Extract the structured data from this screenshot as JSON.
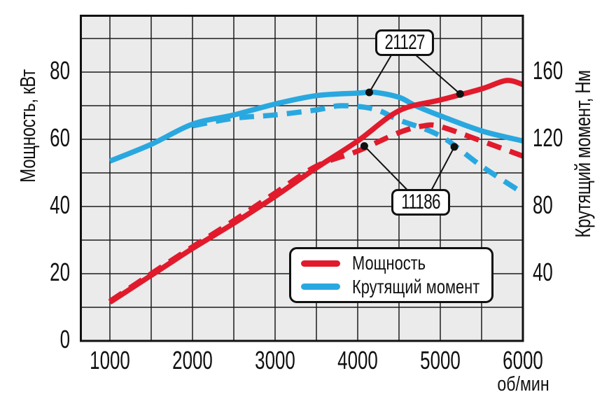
{
  "chart_data": {
    "type": "line",
    "title": "",
    "x": {
      "label": "об/мин",
      "min": 1000,
      "max": 6000,
      "ticks": [
        1000,
        2000,
        3000,
        4000,
        5000,
        6000
      ],
      "gridline_step": 500
    },
    "y_left": {
      "label": "Мощность, кВт",
      "min": 0,
      "max": 96,
      "ticks": [
        0,
        20,
        40,
        60,
        80
      ],
      "gridline_step": 10
    },
    "y_right": {
      "label": "Крутящий момент, Нм",
      "min": 0,
      "max": 193,
      "ticks": [
        40,
        80,
        120,
        160
      ],
      "gridline_step": 20
    },
    "grid": true,
    "plot_background": "#ebebeb",
    "grid_color": "#1c1c1c",
    "border_color": "#111111",
    "colors": {
      "power": "#e11a2c",
      "torque": "#29a8e0"
    },
    "legend_position": "bottom-center-inside",
    "legend": [
      {
        "label": "Мощность",
        "color": "#e11a2c"
      },
      {
        "label": "Крутящий момент",
        "color": "#29a8e0"
      }
    ],
    "series": [
      {
        "id": "torque-11186",
        "engine": "11186",
        "quantity": "Крутящий момент",
        "axis": "right",
        "style": "dashed",
        "color": "#29a8e0",
        "points": [
          [
            2000,
            128
          ],
          [
            2500,
            132.5
          ],
          [
            3000,
            134.5
          ],
          [
            3500,
            137.5
          ],
          [
            3800,
            140
          ],
          [
            4200,
            138
          ],
          [
            4500,
            131.5
          ],
          [
            5000,
            122
          ],
          [
            5500,
            104
          ],
          [
            6000,
            88
          ]
        ]
      },
      {
        "id": "torque-21127",
        "engine": "21127",
        "quantity": "Крутящий момент",
        "axis": "right",
        "style": "solid",
        "color": "#29a8e0",
        "points": [
          [
            1000,
            107
          ],
          [
            1500,
            117
          ],
          [
            2000,
            129
          ],
          [
            2500,
            134.5
          ],
          [
            3000,
            141
          ],
          [
            3500,
            146
          ],
          [
            4000,
            147.5
          ],
          [
            4200,
            148
          ],
          [
            4500,
            145
          ],
          [
            4700,
            140
          ],
          [
            5000,
            134
          ],
          [
            5500,
            125
          ],
          [
            6000,
            119
          ]
        ]
      },
      {
        "id": "power-21127",
        "engine": "21127",
        "quantity": "Мощность",
        "axis": "left",
        "style": "solid",
        "color": "#e11a2c",
        "points": [
          [
            1000,
            11.5
          ],
          [
            1500,
            19.5
          ],
          [
            2000,
            27.5
          ],
          [
            2500,
            35
          ],
          [
            3000,
            43
          ],
          [
            3500,
            51.5
          ],
          [
            4000,
            59.5
          ],
          [
            4500,
            68.5
          ],
          [
            5000,
            71.7
          ],
          [
            5500,
            75
          ],
          [
            5800,
            77.5
          ],
          [
            6000,
            76.3
          ]
        ]
      },
      {
        "id": "power-11186",
        "engine": "11186",
        "quantity": "Мощность",
        "axis": "left",
        "style": "dashed",
        "color": "#e11a2c",
        "points": [
          [
            1000,
            11.8
          ],
          [
            1500,
            20
          ],
          [
            2000,
            28
          ],
          [
            2500,
            35.8
          ],
          [
            3000,
            44
          ],
          [
            3500,
            52
          ],
          [
            4000,
            56.5
          ],
          [
            4500,
            62
          ],
          [
            4800,
            64
          ],
          [
            5000,
            63.8
          ],
          [
            5500,
            59.5
          ],
          [
            6000,
            55
          ]
        ]
      }
    ],
    "annotations": [
      {
        "label": "21127",
        "targets": [
          {
            "rpm": 4140,
            "axis": "right",
            "value": 147.9
          },
          {
            "rpm": 5240,
            "axis": "left",
            "value": 73.5
          }
        ]
      },
      {
        "label": "11186",
        "targets": [
          {
            "rpm": 4080,
            "axis": "left",
            "value": 58
          },
          {
            "rpm": 5170,
            "axis": "right",
            "value": 115.5
          }
        ]
      }
    ]
  }
}
